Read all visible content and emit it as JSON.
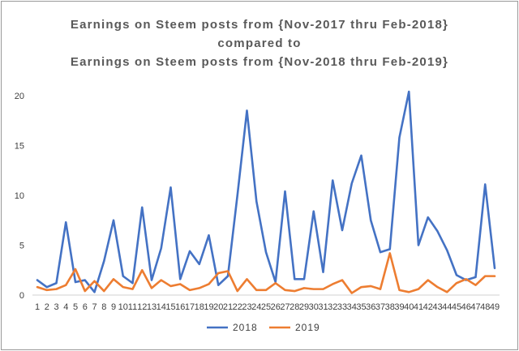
{
  "chart_data": {
    "type": "line",
    "title": "Earnings on Steem posts from {Nov-2017 thru Feb-2018}",
    "title_line2": "compared to",
    "title_line3": "Earnings on Steem posts from {Nov-2018 thru Feb-2019}",
    "xlabel": "",
    "ylabel": "",
    "ylim": [
      0,
      20
    ],
    "yticks": [
      0,
      5,
      10,
      15,
      20
    ],
    "grid": false,
    "legend_position": "bottom",
    "x": [
      1,
      2,
      3,
      4,
      5,
      6,
      7,
      8,
      9,
      10,
      11,
      12,
      13,
      14,
      15,
      16,
      17,
      18,
      19,
      20,
      21,
      22,
      23,
      24,
      25,
      26,
      27,
      28,
      29,
      30,
      31,
      32,
      33,
      34,
      35,
      36,
      37,
      38,
      39,
      40,
      41,
      42,
      43,
      44,
      45,
      46,
      47,
      48,
      49
    ],
    "series": [
      {
        "name": "2018",
        "color": "#4472C4",
        "values": [
          1.5,
          0.8,
          1.2,
          7.3,
          1.3,
          1.5,
          0.3,
          3.4,
          7.5,
          1.9,
          1.2,
          8.8,
          1.5,
          4.7,
          10.8,
          1.6,
          4.4,
          3.1,
          6.0,
          1.0,
          1.9,
          10.0,
          18.5,
          9.4,
          4.3,
          1.3,
          10.4,
          1.6,
          1.6,
          8.4,
          2.3,
          11.5,
          6.5,
          11.2,
          14.0,
          7.5,
          4.3,
          4.6,
          15.8,
          20.4,
          5.0,
          7.8,
          6.4,
          4.5,
          2.0,
          1.5,
          1.8,
          11.1,
          2.7
        ]
      },
      {
        "name": "2019",
        "color": "#ED7D31",
        "values": [
          0.8,
          0.5,
          0.6,
          1.0,
          2.6,
          0.4,
          1.4,
          0.4,
          1.6,
          0.8,
          0.6,
          2.5,
          0.7,
          1.5,
          0.9,
          1.1,
          0.5,
          0.7,
          1.1,
          2.2,
          2.4,
          0.4,
          1.6,
          0.5,
          0.5,
          1.2,
          0.5,
          0.4,
          0.7,
          0.6,
          0.6,
          1.1,
          1.5,
          0.2,
          0.8,
          0.9,
          0.6,
          4.2,
          0.5,
          0.3,
          0.6,
          1.5,
          0.8,
          0.3,
          1.2,
          1.6,
          1.0,
          1.9,
          1.9
        ]
      }
    ]
  }
}
